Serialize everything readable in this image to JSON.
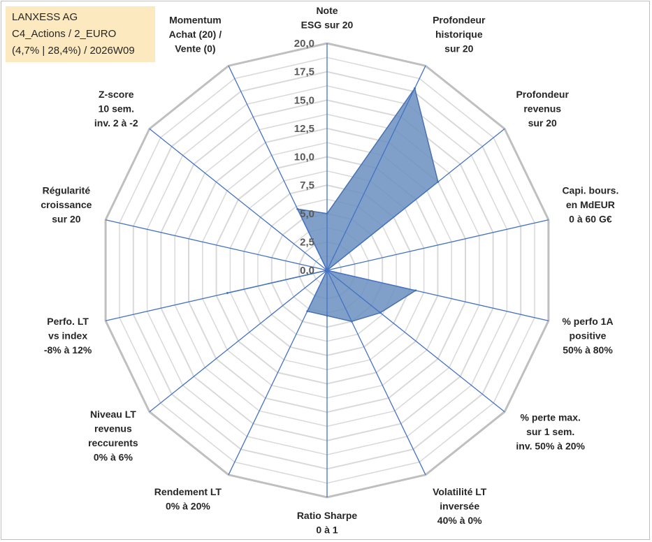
{
  "info_box": {
    "line1": "LANXESS AG",
    "line2": "C4_Actions / 2_EURO",
    "line3": "(4,7% | 28,4%) / 2026W09"
  },
  "chart_data": {
    "type": "radar",
    "rmin": 0,
    "rmax": 20,
    "tick_step": 1.25,
    "tick_labels": [
      "0,0",
      "2,5",
      "5,0",
      "7,5",
      "10,0",
      "12,5",
      "15,0",
      "17,5",
      "20,0"
    ],
    "axes": [
      {
        "label": [
          "Note",
          "ESG sur 20"
        ]
      },
      {
        "label": [
          "Profondeur",
          "historique",
          "sur 20"
        ]
      },
      {
        "label": [
          "Profondeur",
          "revenus",
          "sur 20"
        ]
      },
      {
        "label": [
          "Capi. bours.",
          "en MdEUR",
          "0 à 60 G€"
        ]
      },
      {
        "label": [
          "% perfo 1A",
          "positive",
          "50% à 80%"
        ]
      },
      {
        "label": [
          "% perte max.",
          "sur 1 sem.",
          "inv. 50% à 20%"
        ]
      },
      {
        "label": [
          "Volatilité LT",
          "inversée",
          "40% à 0%"
        ]
      },
      {
        "label": [
          "Ratio Sharpe",
          "0 à 1"
        ]
      },
      {
        "label": [
          "Rendement LT",
          "0% à 20%"
        ]
      },
      {
        "label": [
          "Niveau LT",
          "revenus",
          "reccurents",
          "0% à 6%"
        ]
      },
      {
        "label": [
          "Perfo. LT",
          "vs index",
          "-8% à 12%"
        ]
      },
      {
        "label": [
          "Régularité",
          "croissance",
          "sur 20"
        ]
      },
      {
        "label": [
          "Z-score",
          "10 sem.",
          "inv. 2 à -2"
        ]
      },
      {
        "label": [
          "Momentum",
          "Achat (20) /",
          "Vente (0)"
        ]
      }
    ],
    "series": [
      {
        "values": [
          5.0,
          17.8,
          12.5,
          0.0,
          8.0,
          6.0,
          5.0,
          4.0,
          4.0,
          0.0,
          9.0,
          0.0,
          0.0,
          6.0
        ]
      }
    ],
    "colors": {
      "fill": "#6a8fbf",
      "stroke": "#4a72b0",
      "spoke": "#4472c4",
      "grid": "#d9d9d9",
      "ring_outer": "#bfbfbf"
    },
    "grid": true,
    "legend": "none"
  }
}
